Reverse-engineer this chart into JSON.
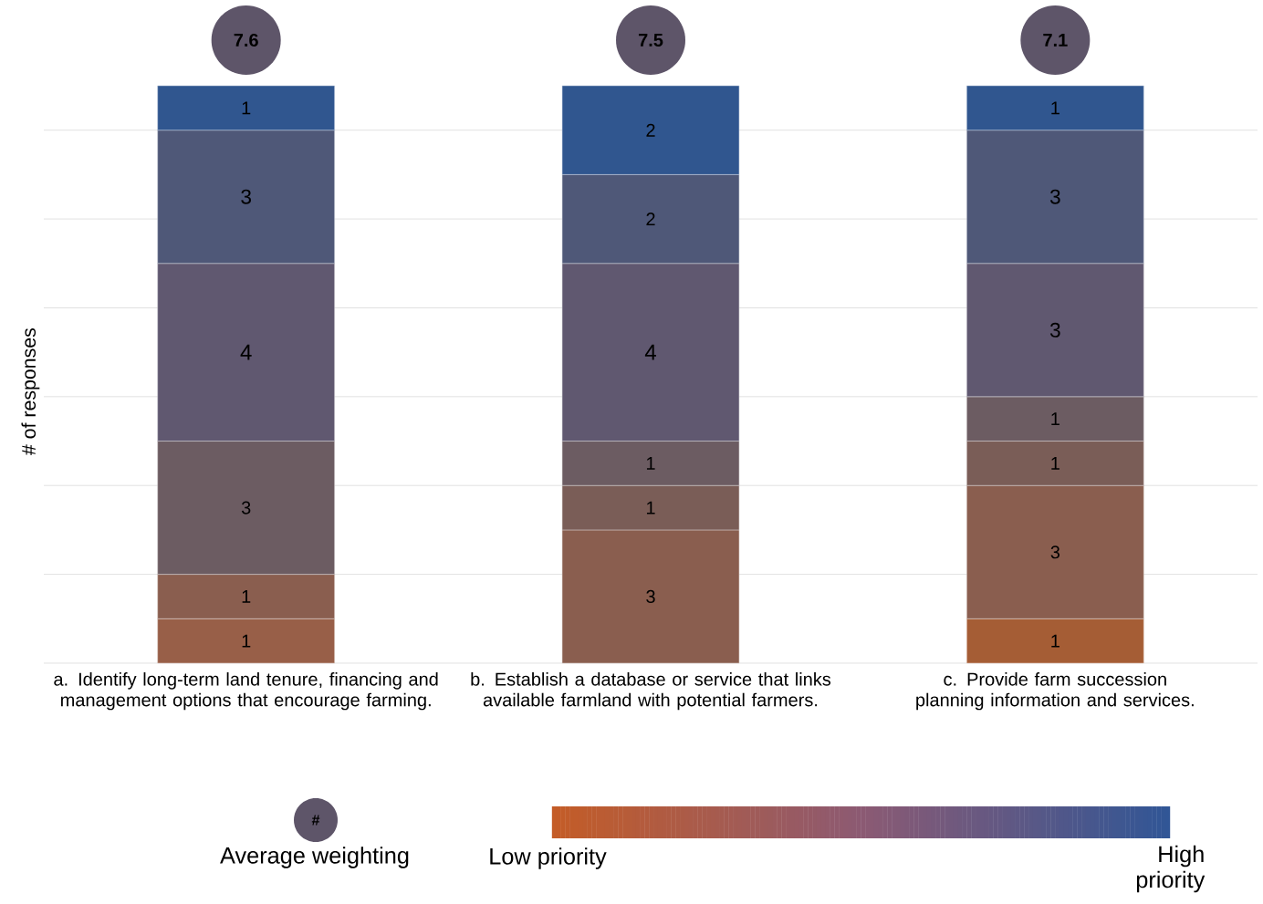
{
  "chart_data": {
    "type": "bar",
    "stacked": true,
    "data_labels": true,
    "grid": "y",
    "tick_labels": "x",
    "ylabel": "# of responses",
    "categories": [
      "a. Identify long-term land tenure, financing and management options that encourage farming.",
      "b. Establish a database or service that links available farmland with potential farmers.",
      "c. Provide farm succession planning information and services."
    ],
    "series": [
      {
        "color": "#a55d35",
        "values": [
          null,
          null,
          1
        ]
      },
      {
        "color": "#985f48",
        "values": [
          1,
          null,
          null
        ]
      },
      {
        "color": "#8a5e4f",
        "values": [
          1,
          3,
          3
        ]
      },
      {
        "color": "#7a5d57",
        "values": [
          null,
          1,
          1
        ]
      },
      {
        "color": "#6c5c62",
        "values": [
          3,
          1,
          1
        ]
      },
      {
        "color": "#605870",
        "values": [
          4,
          4,
          3
        ]
      },
      {
        "color": "#4f5878",
        "values": [
          3,
          2,
          3
        ]
      },
      {
        "color": "#30568f",
        "values": [
          1,
          2,
          1
        ]
      }
    ],
    "annotations": [
      "7.6",
      "7.5",
      "7.1",
      "#",
      "Average weighting",
      "Low priority",
      "High priority"
    ]
  }
}
